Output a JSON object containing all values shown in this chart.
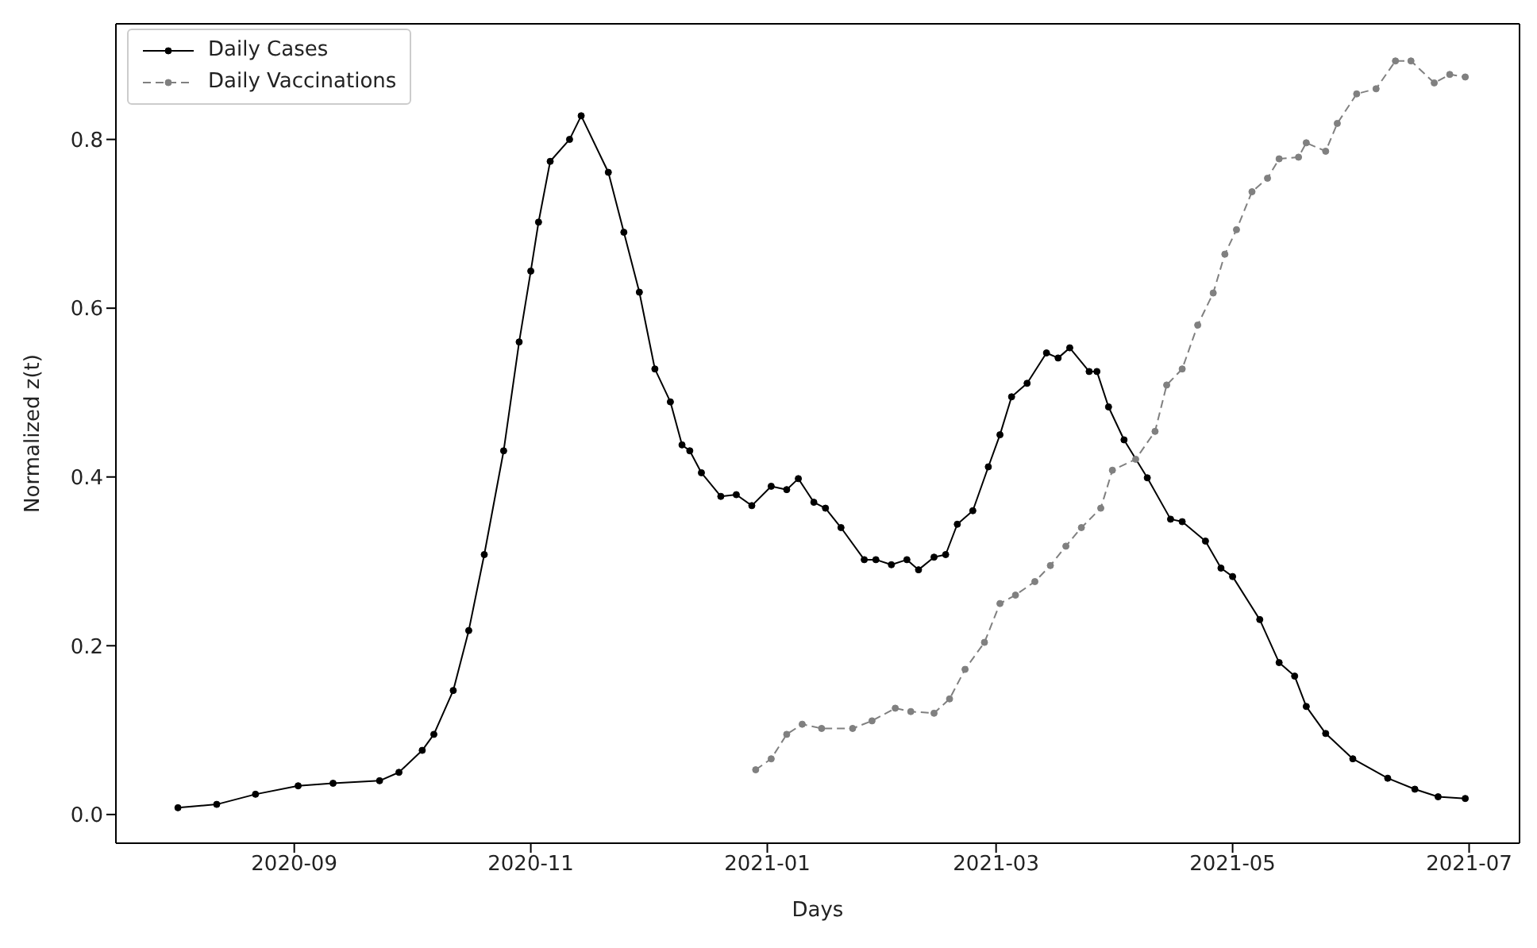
{
  "chart_data": {
    "type": "line",
    "xlabel": "Days",
    "ylabel": "Normalized z(t)",
    "xlim": [
      "2020-07-17",
      "2021-07-14"
    ],
    "xticks": [
      "2020-09",
      "2020-11",
      "2021-01",
      "2021-03",
      "2021-05",
      "2021-07"
    ],
    "ylim": [
      -0.034,
      0.937
    ],
    "yticks": [
      {
        "value": 0,
        "label": "0.0"
      },
      0.2,
      0.4,
      0.6,
      0.8
    ],
    "grid": false,
    "legend": "top left",
    "marker": "circle",
    "series": [
      {
        "name": "Daily Cases",
        "color": "#000000",
        "line_style": "solid",
        "x": [
          "2020-08-02",
          "2020-08-12",
          "2020-08-22",
          "2020-09-02",
          "2020-09-11",
          "2020-09-23",
          "2020-09-28",
          "2020-10-04",
          "2020-10-07",
          "2020-10-12",
          "2020-10-16",
          "2020-10-20",
          "2020-10-25",
          "2020-10-29",
          "2020-11-01",
          "2020-11-03",
          "2020-11-06",
          "2020-11-11",
          "2020-11-14",
          "2020-11-21",
          "2020-11-25",
          "2020-11-29",
          "2020-12-03",
          "2020-12-07",
          "2020-12-10",
          "2020-12-12",
          "2020-12-15",
          "2020-12-20",
          "2020-12-24",
          "2020-12-28",
          "2021-01-02",
          "2021-01-06",
          "2021-01-09",
          "2021-01-13",
          "2021-01-16",
          "2021-01-20",
          "2021-01-26",
          "2021-01-29",
          "2021-02-02",
          "2021-02-06",
          "2021-02-09",
          "2021-02-13",
          "2021-02-16",
          "2021-02-19",
          "2021-02-23",
          "2021-02-27",
          "2021-03-02",
          "2021-03-05",
          "2021-03-09",
          "2021-03-14",
          "2021-03-17",
          "2021-03-20",
          "2021-03-25",
          "2021-03-27",
          "2021-03-30",
          "2021-04-03",
          "2021-04-09",
          "2021-04-15",
          "2021-04-18",
          "2021-04-24",
          "2021-04-28",
          "2021-05-01",
          "2021-05-08",
          "2021-05-13",
          "2021-05-17",
          "2021-05-20",
          "2021-05-25",
          "2021-06-01",
          "2021-06-10",
          "2021-06-17",
          "2021-06-23",
          "2021-06-30"
        ],
        "values": [
          0.008,
          0.012,
          0.024,
          0.034,
          0.037,
          0.04,
          0.05,
          0.076,
          0.095,
          0.147,
          0.218,
          0.308,
          0.431,
          0.56,
          0.644,
          0.702,
          0.774,
          0.8,
          0.828,
          0.761,
          0.69,
          0.619,
          0.528,
          0.489,
          0.438,
          0.431,
          0.405,
          0.377,
          0.379,
          0.366,
          0.389,
          0.385,
          0.398,
          0.37,
          0.363,
          0.34,
          0.302,
          0.302,
          0.296,
          0.302,
          0.29,
          0.305,
          0.308,
          0.344,
          0.36,
          0.412,
          0.45,
          0.495,
          0.511,
          0.547,
          0.541,
          0.553,
          0.525,
          0.525,
          0.483,
          0.444,
          0.399,
          0.35,
          0.347,
          0.324,
          0.292,
          0.282,
          0.231,
          0.18,
          0.164,
          0.128,
          0.096,
          0.066,
          0.043,
          0.03,
          0.021,
          0.019
        ]
      },
      {
        "name": "Daily Vaccinations",
        "color": "#808080",
        "line_style": "dashed",
        "x": [
          "2020-12-29",
          "2021-01-02",
          "2021-01-06",
          "2021-01-10",
          "2021-01-15",
          "2021-01-23",
          "2021-01-28",
          "2021-02-03",
          "2021-02-07",
          "2021-02-13",
          "2021-02-17",
          "2021-02-21",
          "2021-02-26",
          "2021-03-02",
          "2021-03-06",
          "2021-03-11",
          "2021-03-15",
          "2021-03-19",
          "2021-03-23",
          "2021-03-28",
          "2021-03-31",
          "2021-04-06",
          "2021-04-11",
          "2021-04-14",
          "2021-04-18",
          "2021-04-22",
          "2021-04-26",
          "2021-04-29",
          "2021-05-02",
          "2021-05-06",
          "2021-05-10",
          "2021-05-13",
          "2021-05-18",
          "2021-05-20",
          "2021-05-25",
          "2021-05-28",
          "2021-06-02",
          "2021-06-07",
          "2021-06-12",
          "2021-06-16",
          "2021-06-22",
          "2021-06-26",
          "2021-06-30"
        ],
        "values": [
          0.053,
          0.066,
          0.095,
          0.107,
          0.102,
          0.102,
          0.111,
          0.126,
          0.122,
          0.12,
          0.137,
          0.172,
          0.204,
          0.25,
          0.26,
          0.276,
          0.295,
          0.318,
          0.34,
          0.363,
          0.408,
          0.421,
          0.454,
          0.509,
          0.528,
          0.58,
          0.618,
          0.664,
          0.693,
          0.738,
          0.754,
          0.777,
          0.779,
          0.796,
          0.786,
          0.819,
          0.854,
          0.86,
          0.893,
          0.893,
          0.867,
          0.877,
          0.874
        ]
      }
    ]
  }
}
